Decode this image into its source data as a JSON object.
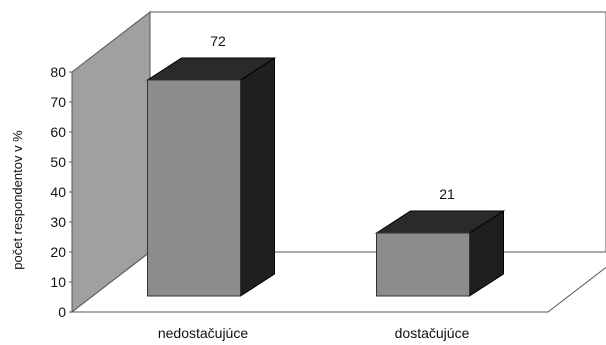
{
  "chart_data": {
    "type": "bar",
    "categories": [
      "nedostačujúce",
      "dostačujúce"
    ],
    "values": [
      72,
      21
    ],
    "data_labels": [
      "72",
      "21"
    ],
    "title": "",
    "xlabel": "",
    "ylabel": "počet respondentov v %",
    "ylim": [
      0,
      80
    ],
    "yticks": [
      "0",
      "10",
      "20",
      "30",
      "40",
      "50",
      "60",
      "70",
      "80"
    ],
    "grid": false,
    "legend": "none",
    "colors": {
      "bar_front": "#8c8c8c",
      "bar_side": "#1f1f1f",
      "bar_top": "#2a2a2a",
      "back_wall": "#ffffff",
      "side_wall": "#a0a0a0",
      "floor": "#ffffff",
      "outline": "#555555"
    }
  }
}
